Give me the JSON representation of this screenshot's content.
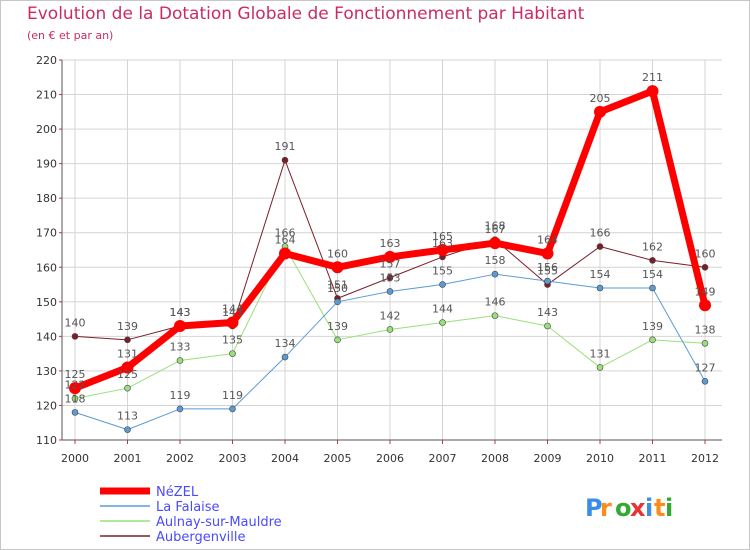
{
  "title": "Evolution de la Dotation Globale de Fonctionnement par Habitant",
  "subtitle": "(en € et par an)",
  "logo": {
    "text": "Proxiti",
    "letter_colors": [
      "#3a8ee6",
      "#ff8c1a",
      "#33aa33",
      "#e63333",
      "#3a8ee6",
      "#ff8c1a",
      "#33aa33"
    ]
  },
  "chart_data": {
    "type": "line",
    "title": "Evolution de la Dotation Globale de Fonctionnement par Habitant",
    "subtitle": "(en € et par an)",
    "x": [
      "2000",
      "2001",
      "2002",
      "2003",
      "2004",
      "2005",
      "2006",
      "2007",
      "2008",
      "2009",
      "2010",
      "2011",
      "2012"
    ],
    "ylim": [
      110,
      220
    ],
    "yticks": [
      110,
      120,
      130,
      140,
      150,
      160,
      170,
      180,
      190,
      200,
      210,
      220
    ],
    "grid": true,
    "legend_position": "bottom-left",
    "series": [
      {
        "name": "Aubergenville",
        "color": "#7a1f2a",
        "width": 1,
        "marker": 3,
        "values": [
          140,
          139,
          143,
          143,
          191,
          151,
          157,
          163,
          168,
          155,
          166,
          162,
          160
        ]
      },
      {
        "name": "Aulnay-sur-Mauldre",
        "color": "#99e07a",
        "width": 1,
        "marker": 3,
        "values": [
          122,
          125,
          133,
          135,
          166,
          139,
          142,
          144,
          146,
          143,
          131,
          139,
          138
        ]
      },
      {
        "name": "La Falaise",
        "color": "#5b9bd5",
        "width": 1,
        "marker": 3,
        "values": [
          118,
          113,
          119,
          119,
          134,
          150,
          153,
          155,
          158,
          156,
          154,
          154,
          127
        ]
      },
      {
        "name": "NéZEL",
        "color": "#ff0000",
        "width": 7,
        "marker": 6,
        "values": [
          125,
          131,
          143,
          144,
          164,
          160,
          163,
          165,
          167,
          164,
          205,
          211,
          149
        ]
      }
    ],
    "legend_order": [
      "NéZEL",
      "La Falaise",
      "Aulnay-sur-Mauldre",
      "Aubergenville"
    ]
  }
}
